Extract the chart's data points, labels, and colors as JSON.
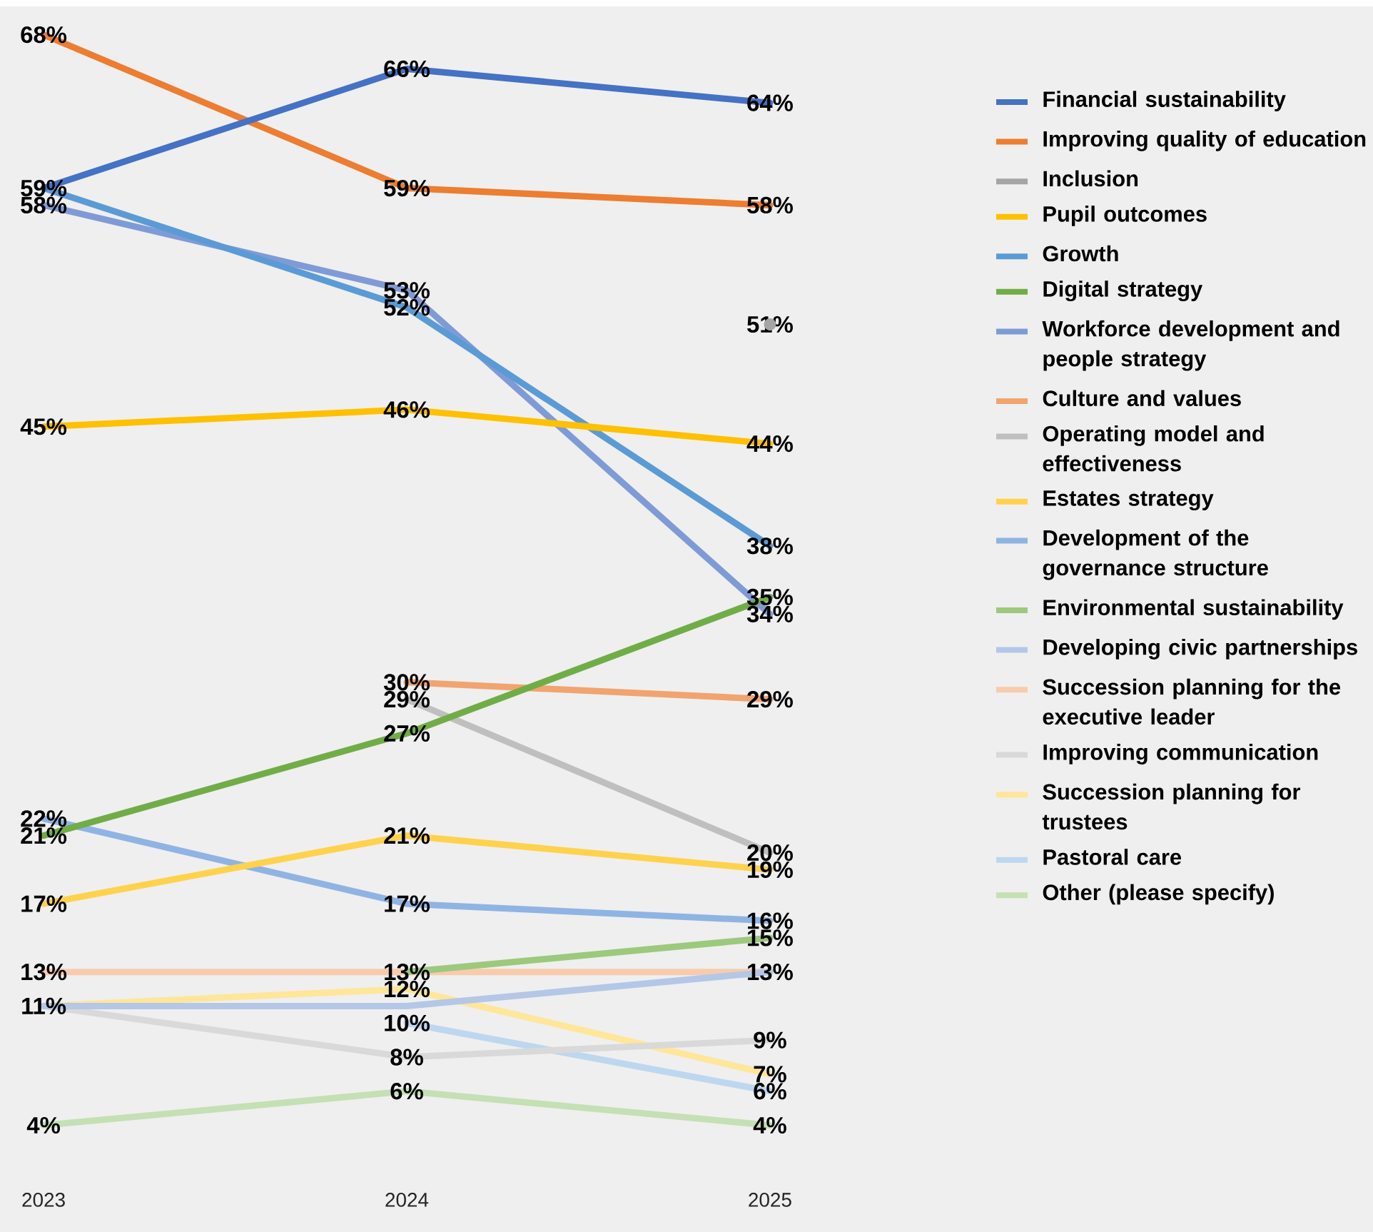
{
  "chart_data": {
    "type": "line",
    "categories": [
      "2023",
      "2024",
      "2025"
    ],
    "tick_labels": "x",
    "legend": "right",
    "series": [
      {
        "name": "Financial sustainability",
        "color": "#4472c4",
        "values": [
          59,
          66,
          64
        ],
        "value_labels": [
          "59%",
          "66%",
          "64%"
        ]
      },
      {
        "name": "Improving quality of education",
        "color": "#ed7d31",
        "values": [
          68,
          59,
          58
        ],
        "value_labels": [
          "68%",
          "59%",
          "58%"
        ]
      },
      {
        "name": "Inclusion",
        "color": "#a5a5a5",
        "marker": "circle",
        "values": [
          null,
          null,
          51
        ],
        "value_labels": [
          null,
          null,
          "51%"
        ]
      },
      {
        "name": "Pupil outcomes",
        "color": "#ffc000",
        "values": [
          45,
          46,
          44
        ],
        "value_labels": [
          "45%",
          "46%",
          "44%"
        ]
      },
      {
        "name": "Growth",
        "color": "#5b9bd5",
        "values": [
          59,
          52,
          38
        ],
        "value_labels": [
          null,
          "52%",
          "38%"
        ]
      },
      {
        "name": "Digital strategy",
        "color": "#70ad47",
        "values": [
          21,
          27,
          35
        ],
        "value_labels": [
          "21%",
          "27%",
          "35%"
        ]
      },
      {
        "name": "Workforce development and people strategy",
        "color": "#7f9bd6",
        "values": [
          58,
          53,
          34
        ],
        "value_labels": [
          "58%",
          "53%",
          "34%"
        ]
      },
      {
        "name": "Culture and values",
        "color": "#f1a46f",
        "values": [
          null,
          30,
          29
        ],
        "value_labels": [
          null,
          "30%",
          "29%"
        ]
      },
      {
        "name": "Operating model and effectiveness",
        "color": "#bfbfbf",
        "values": [
          null,
          29,
          20
        ],
        "value_labels": [
          null,
          "29%",
          "20%"
        ]
      },
      {
        "name": "Estates strategy",
        "color": "#ffd24d",
        "values": [
          17,
          21,
          19
        ],
        "value_labels": [
          "17%",
          "21%",
          "19%"
        ]
      },
      {
        "name": "Development of the governance structure",
        "color": "#8fb4e3",
        "values": [
          22,
          17,
          16
        ],
        "value_labels": [
          "22%",
          "17%",
          "16%"
        ]
      },
      {
        "name": "Environmental sustainability",
        "color": "#9cc97c",
        "values": [
          null,
          13,
          15
        ],
        "value_labels": [
          null,
          null,
          "15%"
        ]
      },
      {
        "name": "Developing civic partnerships",
        "color": "#b4c7e7",
        "values": [
          11,
          11,
          13
        ],
        "value_labels": [
          null,
          null,
          "13%"
        ]
      },
      {
        "name": "Succession planning for the executive leader",
        "color": "#f8cbad",
        "values": [
          13,
          13,
          13
        ],
        "value_labels": [
          "13%",
          "13%",
          null
        ]
      },
      {
        "name": "Improving communication",
        "color": "#d9d9d9",
        "values": [
          11,
          8,
          9
        ],
        "value_labels": [
          null,
          "8%",
          "9%"
        ]
      },
      {
        "name": "Succession planning for trustees",
        "color": "#ffe699",
        "values": [
          11,
          12,
          7
        ],
        "value_labels": [
          "11%",
          "12%",
          "7%"
        ]
      },
      {
        "name": "Pastoral care",
        "color": "#bdd7ee",
        "values": [
          null,
          10,
          6
        ],
        "value_labels": [
          null,
          "10%",
          "6%"
        ]
      },
      {
        "name": "Other (please specify)",
        "color": "#c5e0b4",
        "values": [
          4,
          6,
          4
        ],
        "value_labels": [
          "4%",
          "6%",
          "4%"
        ]
      }
    ]
  }
}
